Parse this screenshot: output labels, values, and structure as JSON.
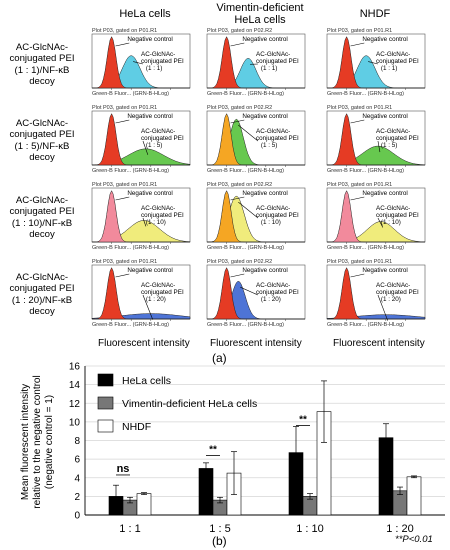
{
  "top": {
    "columns": [
      "HeLa cells",
      "Vimentin-deficient HeLa cells",
      "NHDF"
    ],
    "rows": [
      [
        "AC-GlcNAc-",
        "conjugated PEI",
        "(1 : 1)/NF-κB",
        "decoy"
      ],
      [
        "AC-GlcNAc-",
        "conjugated PEI",
        "(1 : 5)/NF-κB",
        "decoy"
      ],
      [
        "AC-GlcNAc-",
        "conjugated PEI",
        "(1 : 10)/NF-κB",
        "decoy"
      ],
      [
        "AC-GlcNAc-",
        "conjugated PEI",
        "(1 : 20)/NF-κB",
        "decoy"
      ]
    ],
    "plot_header_hela": "Plot P03, gated on P01.R1",
    "plot_header_vim": "Plot P03, gated on P02.R2",
    "plot_header_nhdf": "Plot P03, gated on P01.R1",
    "xaxis_text": "Green-B Fluor...  (GRN-B-HLog)",
    "negative_control": "Negative control",
    "conj_line1": "AC-GlcNAc-",
    "conj_line2": "conjugated PEI",
    "ratios": [
      "(1 : 1)",
      "(1 : 5)",
      "(1 : 10)",
      "(1 : 20)"
    ],
    "xlabel": "Fluorescent intensity",
    "panel_label": "(a)",
    "colors": {
      "negative": "#e53b24",
      "r1": "#5fcde4",
      "r5": "#67c84f",
      "r10": "#f0ec7c",
      "r20": "#4e74d6",
      "pink": "#f28a9c",
      "orange": "#f5a623"
    }
  },
  "chart_data": {
    "type": "bar",
    "ylabel": "Mean fluorescent intensity relative to the negative control (negative control = 1)",
    "ylabel_lines": [
      "Mean fluorescent intensity",
      "relative to the negative control",
      "(negative control = 1)"
    ],
    "ylim": [
      0,
      16
    ],
    "yticks": [
      0,
      2,
      4,
      6,
      8,
      10,
      12,
      14,
      16
    ],
    "categories": [
      "1 : 1",
      "1 : 5",
      "1 : 10",
      "1 : 20"
    ],
    "series": [
      {
        "name": "HeLa cells",
        "color": "#000000",
        "values": [
          2.0,
          5.0,
          6.7,
          8.3
        ],
        "errors": [
          1.2,
          0.6,
          2.8,
          1.5
        ]
      },
      {
        "name": "Vimentin-deficient HeLa cells",
        "color": "#777777",
        "values": [
          1.6,
          1.6,
          2.0,
          2.6
        ],
        "errors": [
          0.3,
          0.3,
          0.3,
          0.4
        ]
      },
      {
        "name": "NHDF",
        "color": "#ffffff",
        "values": [
          2.3,
          4.5,
          11.1,
          4.1
        ],
        "errors": [
          0.1,
          2.3,
          3.3,
          0.1
        ]
      }
    ],
    "annotations": [
      "ns",
      "**",
      "**"
    ],
    "panel_label": "(b)",
    "pvalue_note": "**P<0.01"
  }
}
